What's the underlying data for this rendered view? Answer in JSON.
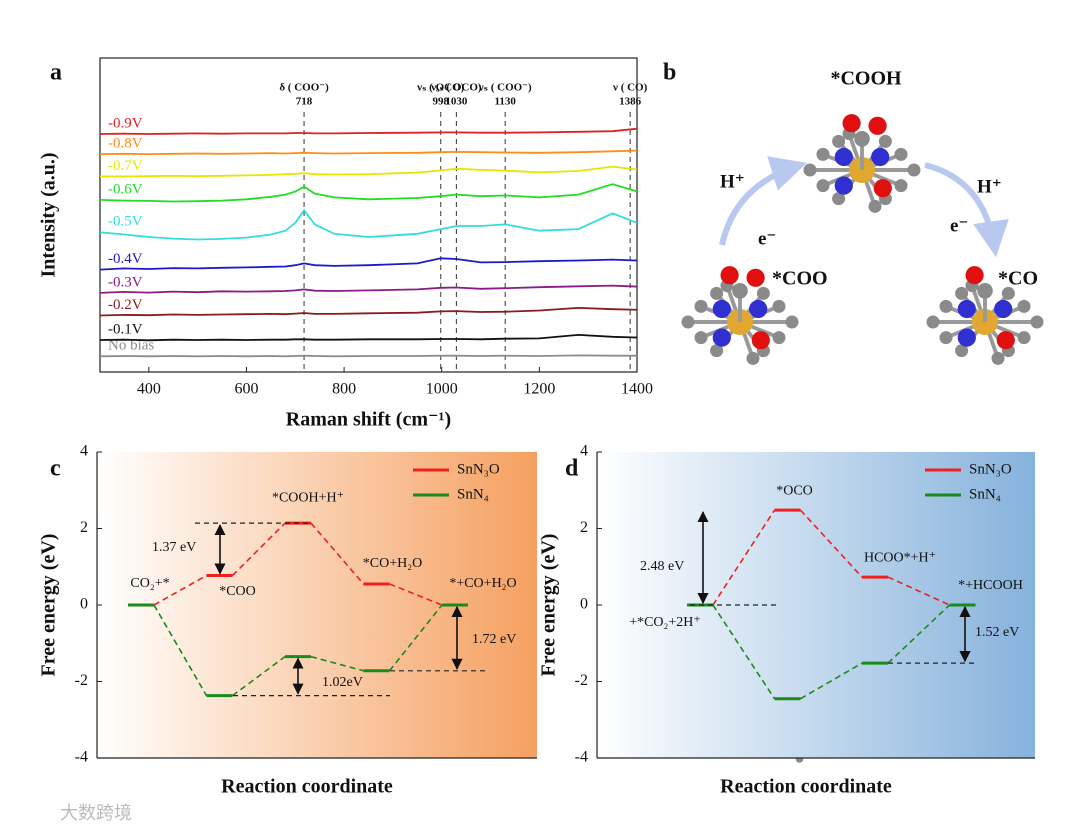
{
  "chart_data": [
    {
      "type": "spectrum",
      "panel_label": "a",
      "xlabel": "Raman shift (cm⁻¹)",
      "ylabel": "Intensity (a.u.)",
      "xlim": [
        300,
        1400
      ],
      "xticks": [
        400,
        600,
        800,
        1000,
        1200,
        1400
      ],
      "ylim": [
        0,
        100
      ],
      "x": [
        300,
        350,
        400,
        450,
        500,
        550,
        600,
        650,
        680,
        700,
        718,
        740,
        780,
        850,
        950,
        998,
        1030,
        1080,
        1130,
        1200,
        1280,
        1350,
        1400
      ],
      "series": [
        {
          "name": "No bias",
          "color": "#8c8c8c",
          "values": [
            5,
            5.1,
            5,
            5.1,
            5,
            5.1,
            5,
            5.1,
            5,
            5.1,
            5.2,
            5.1,
            5,
            5.1,
            5.1,
            5.2,
            5.2,
            5.1,
            5.2,
            5.1,
            5.3,
            5.2,
            5.2
          ]
        },
        {
          "name": "-0.1V",
          "color": "#111111",
          "values": [
            10.2,
            10.3,
            10.1,
            10.3,
            10.2,
            10.3,
            10.2,
            10.3,
            10.3,
            10.4,
            10.4,
            10.3,
            10.3,
            10.4,
            10.4,
            10.5,
            10.5,
            10.4,
            10.6,
            10.7,
            11.8,
            11.2,
            11
          ]
        },
        {
          "name": "-0.2V",
          "color": "#8b1a1a",
          "values": [
            18,
            18.2,
            18.1,
            18.3,
            18.2,
            18.3,
            18.4,
            18.5,
            18.4,
            18.6,
            18.8,
            18.5,
            18.5,
            18.7,
            18.9,
            19.3,
            19.4,
            19.1,
            19.2,
            19.6,
            20.4,
            20,
            19.8
          ]
        },
        {
          "name": "-0.3V",
          "color": "#8b1a8b",
          "values": [
            25.2,
            25.5,
            25.3,
            25.6,
            25.4,
            25.7,
            25.6,
            25.7,
            25.8,
            26,
            26.3,
            25.9,
            25.8,
            26,
            26.3,
            26.8,
            26.9,
            26.5,
            26.7,
            27,
            27.3,
            27.5,
            27.2
          ]
        },
        {
          "name": "-0.4V",
          "color": "#1a1acc",
          "values": [
            32.6,
            33,
            32.8,
            33.1,
            33,
            33.2,
            33.3,
            33.5,
            33.6,
            34,
            34.6,
            34,
            33.8,
            34,
            34.6,
            36.2,
            36,
            34.9,
            35,
            35.3,
            35.5,
            35.8,
            35.5
          ]
        },
        {
          "name": "-0.5V",
          "color": "#33dddd",
          "values": [
            44.5,
            43.8,
            43,
            42.5,
            42.2,
            42.4,
            42.8,
            43.8,
            45,
            47.5,
            51.5,
            47,
            44,
            43,
            44,
            45.5,
            46.5,
            46.5,
            47,
            45,
            45.5,
            50.5,
            47.5
          ]
        },
        {
          "name": "-0.6V",
          "color": "#22dd22",
          "values": [
            54.8,
            54.6,
            54.5,
            54.3,
            54.4,
            54.6,
            55,
            55.8,
            56.5,
            57.5,
            59,
            56.8,
            55.6,
            55,
            55.4,
            56,
            56.5,
            56,
            56.2,
            55.6,
            56.5,
            59.8,
            57.5
          ]
        },
        {
          "name": "-0.7V",
          "color": "#e6e600",
          "values": [
            62.3,
            62.3,
            62.4,
            62.5,
            62.4,
            62.5,
            62.6,
            62.8,
            63,
            63.1,
            63.3,
            63,
            62.9,
            63,
            63.5,
            64.2,
            64.7,
            64.4,
            64.1,
            63.6,
            64,
            65.4,
            64.5
          ]
        },
        {
          "name": "-0.8V",
          "color": "#ff8c1a",
          "values": [
            69.4,
            69.5,
            69.4,
            69.5,
            69.6,
            69.5,
            69.6,
            69.7,
            69.6,
            69.7,
            69.8,
            69.7,
            69.6,
            69.7,
            69.8,
            70,
            70.1,
            70,
            69.9,
            69.8,
            70,
            70.3,
            70.5
          ]
        },
        {
          "name": "-0.9V",
          "color": "#dd2222",
          "values": [
            75.8,
            75.9,
            75.8,
            75.9,
            76,
            75.9,
            76,
            76,
            76,
            76.1,
            76.1,
            76,
            76,
            76.1,
            76.2,
            76.3,
            76.3,
            76.2,
            76.2,
            76.3,
            76.5,
            76.7,
            77.5
          ]
        }
      ],
      "peaks": [
        {
          "label": "δ ( COO⁻)",
          "value": 718
        },
        {
          "label": "νₛ ( OCO)",
          "value": 998
        },
        {
          "label": "νₐₛ ( OCO)",
          "value": 1030
        },
        {
          "label": "νₛ ( COO⁻)",
          "value": 1130
        },
        {
          "label": "ν ( CO)",
          "value": 1386
        }
      ]
    },
    {
      "type": "energy",
      "panel_label": "c",
      "xlabel": "Reaction coordinate",
      "ylabel": "Free energy (eV)",
      "ylim": [
        -4,
        4
      ],
      "yticks": [
        -4,
        -2,
        0,
        2,
        4
      ],
      "categories": [
        "CO₂+*",
        "*COO",
        "*COOH+H⁺",
        "*CO+H₂O",
        "*+CO+H₂O"
      ],
      "series": [
        {
          "name": "SnN₃O",
          "color": "#ee2020",
          "values": [
            0,
            0.77,
            2.14,
            0.55,
            0
          ]
        },
        {
          "name": "SnN₄",
          "color": "#1a8a1a",
          "values": [
            0,
            -2.37,
            -1.35,
            -1.72,
            0
          ]
        }
      ],
      "annotations": [
        {
          "label": "1.37 eV",
          "value": 1.37
        },
        {
          "label": "1.02eV",
          "value": 1.02
        },
        {
          "label": "1.72 eV",
          "value": 1.72
        }
      ]
    },
    {
      "type": "energy",
      "panel_label": "d",
      "xlabel": "Reaction coordinate",
      "ylabel": "Free energy (eV)",
      "ylim": [
        -4,
        4
      ],
      "yticks": [
        -4,
        -2,
        0,
        2,
        4
      ],
      "categories": [
        "+*CO₂+2H⁺",
        "*OCO",
        "HCOO*+H⁺",
        "*+HCOOH"
      ],
      "series": [
        {
          "name": "SnN₃O",
          "color": "#ee2020",
          "values": [
            0,
            2.48,
            0.73,
            0
          ]
        },
        {
          "name": "SnN₄",
          "color": "#1a8a1a",
          "values": [
            0,
            -2.45,
            -1.52,
            0
          ]
        }
      ],
      "annotations": [
        {
          "label": "2.48 eV",
          "value": 2.48
        },
        {
          "label": "1.52 eV",
          "value": 1.52
        }
      ]
    }
  ],
  "diagram": {
    "panel_label": "b",
    "nodes": [
      {
        "label": "*COOH"
      },
      {
        "label": "*COO"
      },
      {
        "label": "*CO"
      }
    ],
    "edges": [
      {
        "proton": "H⁺",
        "electron": "e⁻"
      },
      {
        "proton": "H⁺",
        "electron": "e⁻"
      }
    ]
  },
  "watermark": "大数跨境"
}
